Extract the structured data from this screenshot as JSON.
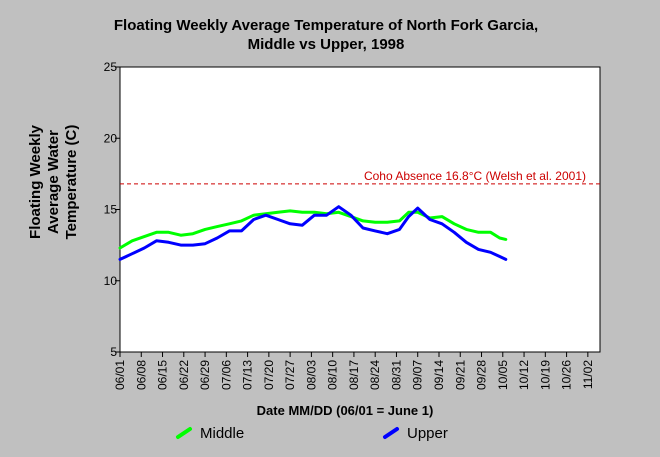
{
  "chart_data": {
    "type": "line",
    "title": [
      "Floating Weekly Average Temperature of North Fork Garcia,",
      "Middle vs Upper, 1998"
    ],
    "ylabel": [
      "Floating Weekly",
      "Average Water",
      "Temperature (C)"
    ],
    "xlabel": "Date MM/DD (06/01 = June 1)",
    "ylim": [
      5,
      25
    ],
    "yticks": [
      5,
      10,
      15,
      20,
      25
    ],
    "x_start": "06/01",
    "x_end": "11/06",
    "xticks": [
      "06/01",
      "06/08",
      "06/15",
      "06/22",
      "06/29",
      "07/06",
      "07/13",
      "07/20",
      "07/27",
      "08/03",
      "08/10",
      "08/17",
      "08/24",
      "08/31",
      "09/07",
      "09/14",
      "09/21",
      "09/28",
      "10/05",
      "10/12",
      "10/19",
      "10/26",
      "11/02"
    ],
    "grid": false,
    "legend_position": "bottom",
    "reference_line": {
      "value": 16.8,
      "label": "Coho Absence 16.8°C (Welsh et al. 2001)",
      "color": "#cc0000"
    },
    "series": [
      {
        "name": "Middle",
        "color": "#00ff00",
        "points": [
          [
            "06/01",
            12.3
          ],
          [
            "06/05",
            12.8
          ],
          [
            "06/09",
            13.1
          ],
          [
            "06/13",
            13.4
          ],
          [
            "06/17",
            13.4
          ],
          [
            "06/21",
            13.2
          ],
          [
            "06/25",
            13.3
          ],
          [
            "06/29",
            13.6
          ],
          [
            "07/03",
            13.8
          ],
          [
            "07/07",
            14.0
          ],
          [
            "07/11",
            14.2
          ],
          [
            "07/15",
            14.6
          ],
          [
            "07/19",
            14.7
          ],
          [
            "07/23",
            14.8
          ],
          [
            "07/27",
            14.9
          ],
          [
            "07/31",
            14.8
          ],
          [
            "08/04",
            14.8
          ],
          [
            "08/08",
            14.7
          ],
          [
            "08/12",
            14.8
          ],
          [
            "08/16",
            14.5
          ],
          [
            "08/20",
            14.2
          ],
          [
            "08/24",
            14.1
          ],
          [
            "08/28",
            14.1
          ],
          [
            "09/01",
            14.2
          ],
          [
            "09/04",
            14.8
          ],
          [
            "09/07",
            14.8
          ],
          [
            "09/11",
            14.4
          ],
          [
            "09/15",
            14.5
          ],
          [
            "09/19",
            14.0
          ],
          [
            "09/23",
            13.6
          ],
          [
            "09/27",
            13.4
          ],
          [
            "10/01",
            13.4
          ],
          [
            "10/04",
            13.0
          ],
          [
            "10/06",
            12.9
          ]
        ]
      },
      {
        "name": "Upper",
        "color": "#0000ff",
        "points": [
          [
            "06/01",
            11.5
          ],
          [
            "06/05",
            11.9
          ],
          [
            "06/09",
            12.3
          ],
          [
            "06/13",
            12.8
          ],
          [
            "06/17",
            12.7
          ],
          [
            "06/21",
            12.5
          ],
          [
            "06/25",
            12.5
          ],
          [
            "06/29",
            12.6
          ],
          [
            "07/03",
            13.0
          ],
          [
            "07/07",
            13.5
          ],
          [
            "07/11",
            13.5
          ],
          [
            "07/15",
            14.3
          ],
          [
            "07/19",
            14.6
          ],
          [
            "07/23",
            14.3
          ],
          [
            "07/27",
            14.0
          ],
          [
            "07/31",
            13.9
          ],
          [
            "08/04",
            14.6
          ],
          [
            "08/08",
            14.6
          ],
          [
            "08/12",
            15.2
          ],
          [
            "08/16",
            14.6
          ],
          [
            "08/20",
            13.7
          ],
          [
            "08/24",
            13.5
          ],
          [
            "08/28",
            13.3
          ],
          [
            "09/01",
            13.6
          ],
          [
            "09/04",
            14.5
          ],
          [
            "09/07",
            15.1
          ],
          [
            "09/11",
            14.3
          ],
          [
            "09/15",
            14.0
          ],
          [
            "09/19",
            13.4
          ],
          [
            "09/23",
            12.7
          ],
          [
            "09/27",
            12.2
          ],
          [
            "10/01",
            12.0
          ],
          [
            "10/04",
            11.7
          ],
          [
            "10/06",
            11.5
          ]
        ]
      }
    ]
  }
}
